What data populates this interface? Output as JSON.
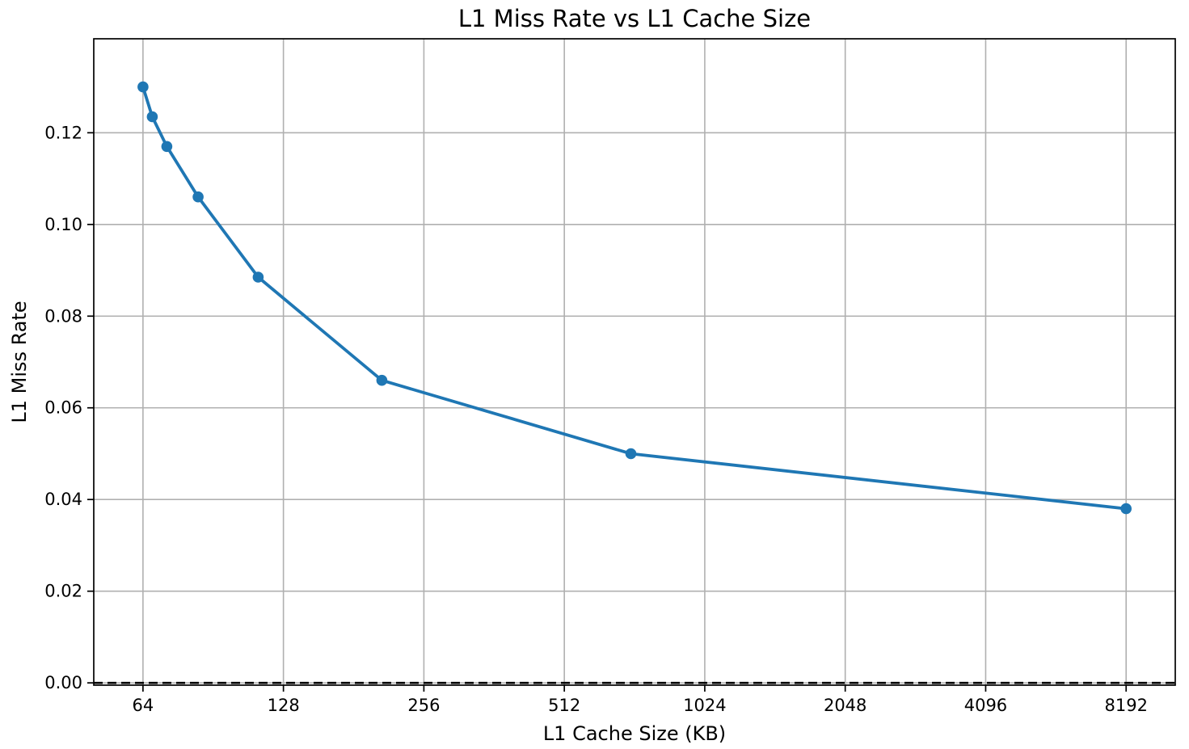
{
  "figure": {
    "background": "#ffffff"
  },
  "chart_data": {
    "type": "line",
    "title": "L1 Miss Rate vs L1 Cache Size",
    "xlabel": "L1 Cache Size (KB)",
    "ylabel": "L1 Miss Rate",
    "xscale": "log2",
    "xlim": [
      50.2,
      10440
    ],
    "ylim": [
      -0.0005,
      0.1405
    ],
    "xticks": [
      64,
      128,
      256,
      512,
      1024,
      2048,
      4096,
      8192
    ],
    "yticks": [
      0,
      0.02,
      0.04,
      0.06,
      0.08,
      0.1,
      0.12
    ],
    "ytick_decimals": 2,
    "grid": true,
    "series": [
      {
        "x": [
          64,
          67,
          72,
          84,
          113,
          208,
          711,
          8192
        ],
        "y": [
          0.13,
          0.1235,
          0.117,
          0.106,
          0.0885,
          0.066,
          0.05,
          0.038
        ],
        "color": "#1f77b4",
        "marker": "circle",
        "line_width": 3.8,
        "marker_radius": 6.8
      }
    ],
    "reference_lines": [
      {
        "axis": "y",
        "value": 0,
        "style": "dashed",
        "color": "#000000",
        "width": 2.6
      }
    ],
    "colors": {
      "grid": "#b0b0b0",
      "spine": "#000000",
      "text": "#000000"
    }
  }
}
